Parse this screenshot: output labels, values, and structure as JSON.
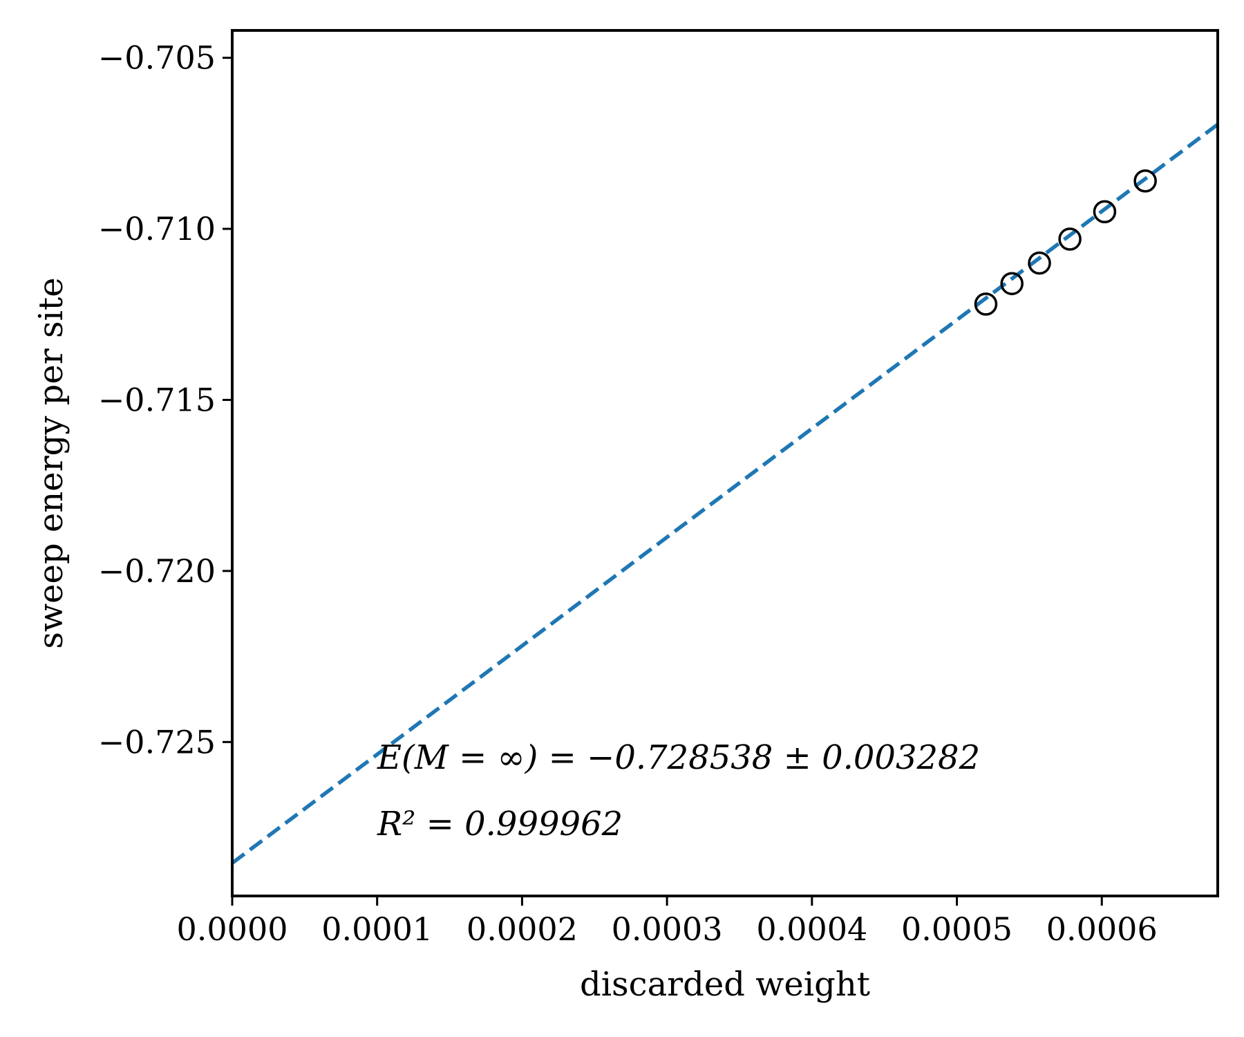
{
  "chart_data": {
    "type": "scatter",
    "xlabel": "discarded weight",
    "ylabel": "sweep energy per site",
    "xlim": [
      0.0,
      0.00068
    ],
    "ylim": [
      -0.7295,
      -0.7042
    ],
    "x_ticks": [
      0.0,
      0.0001,
      0.0002,
      0.0003,
      0.0004,
      0.0005,
      0.0006
    ],
    "x_tick_labels": [
      "0.0000",
      "0.0001",
      "0.0002",
      "0.0003",
      "0.0004",
      "0.0005",
      "0.0006"
    ],
    "y_ticks": [
      -0.705,
      -0.71,
      -0.715,
      -0.72,
      -0.725
    ],
    "y_tick_labels": [
      "−0.705",
      "−0.710",
      "−0.715",
      "−0.720",
      "−0.725"
    ],
    "points": {
      "x": [
        0.00052,
        0.000538,
        0.000557,
        0.000578,
        0.000602,
        0.00063
      ],
      "y": [
        -0.7122,
        -0.7116,
        -0.711,
        -0.7103,
        -0.7095,
        -0.7086
      ],
      "marker": "open-circle",
      "color": "#000000"
    },
    "fit_line": {
      "style": "dashed",
      "color": "#1f77b4",
      "intercept": -0.728538,
      "slope": 31.75
    },
    "annotations": [
      "E(M = ∞) = −0.728538 ± 0.003282",
      "R² = 0.999962"
    ],
    "grid": false
  }
}
